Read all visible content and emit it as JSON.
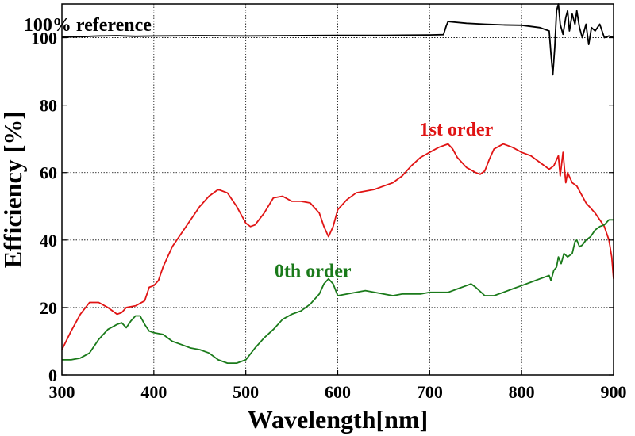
{
  "chart_data": {
    "type": "line",
    "title": "",
    "xlabel": "Wavelength[nm]",
    "ylabel": "Efficiency [%]",
    "xlim": [
      300,
      900
    ],
    "ylim": [
      0,
      110
    ],
    "xticks": [
      300,
      400,
      500,
      600,
      700,
      800,
      900
    ],
    "yticks": [
      0,
      20,
      40,
      60,
      80,
      100
    ],
    "grid": true,
    "series": [
      {
        "name": "100% reference",
        "color": "#000000",
        "label_anchor": [
          328,
          102
        ],
        "x": [
          300,
          320,
          340,
          360,
          380,
          400,
          450,
          500,
          550,
          600,
          650,
          700,
          715,
          718,
          720,
          740,
          760,
          780,
          800,
          820,
          830,
          832,
          834,
          836,
          838,
          840,
          842,
          845,
          848,
          850,
          852,
          855,
          858,
          860,
          863,
          866,
          870,
          873,
          876,
          880,
          885,
          890,
          895,
          900
        ],
        "y": [
          100.2,
          100.3,
          100.5,
          100.6,
          100.4,
          100.5,
          100.6,
          100.5,
          100.6,
          100.7,
          100.7,
          100.8,
          100.9,
          103.5,
          104.8,
          104.3,
          104.0,
          103.8,
          103.7,
          103.0,
          102.0,
          95,
          89,
          97,
          108,
          110,
          104,
          101,
          106,
          108,
          102,
          107,
          104,
          108,
          103,
          100,
          104,
          98,
          103,
          102,
          104,
          100,
          100.5,
          100
        ]
      },
      {
        "name": "1st order",
        "color": "#e01414",
        "label_anchor": [
          729,
          71
        ],
        "x": [
          300,
          310,
          320,
          330,
          340,
          350,
          360,
          365,
          370,
          380,
          390,
          395,
          400,
          405,
          410,
          420,
          430,
          440,
          450,
          460,
          470,
          480,
          490,
          500,
          505,
          510,
          520,
          530,
          540,
          550,
          560,
          570,
          580,
          585,
          590,
          595,
          600,
          610,
          620,
          630,
          640,
          650,
          660,
          670,
          680,
          690,
          700,
          710,
          720,
          725,
          730,
          740,
          750,
          755,
          760,
          765,
          770,
          780,
          790,
          800,
          810,
          820,
          830,
          835,
          840,
          842,
          845,
          848,
          850,
          855,
          860,
          870,
          880,
          890,
          895,
          898,
          900
        ],
        "y": [
          7.5,
          13,
          18,
          21.5,
          21.5,
          20,
          18,
          18.5,
          20,
          20.5,
          22,
          26,
          26.5,
          28,
          32,
          38,
          42,
          46,
          50,
          53,
          55,
          54,
          50,
          45,
          44,
          44.5,
          48,
          52.5,
          53,
          51.5,
          51.5,
          51,
          48,
          44,
          41,
          44,
          49,
          52,
          54,
          54.5,
          55,
          56,
          57,
          59,
          62,
          64.5,
          66,
          67.5,
          68.5,
          67,
          64.5,
          61.5,
          60,
          59.5,
          60.5,
          64,
          67,
          68.5,
          67.5,
          66,
          65,
          63,
          61,
          62,
          65,
          59,
          66,
          57,
          60,
          57,
          56,
          51,
          48,
          44,
          40,
          35,
          28.5
        ]
      },
      {
        "name": "0th order",
        "color": "#1a7a1a",
        "label_anchor": [
          573,
          29
        ],
        "x": [
          300,
          310,
          320,
          330,
          340,
          350,
          360,
          365,
          370,
          375,
          380,
          385,
          390,
          395,
          400,
          410,
          420,
          430,
          440,
          450,
          460,
          470,
          480,
          490,
          500,
          510,
          520,
          530,
          540,
          550,
          560,
          570,
          580,
          585,
          590,
          595,
          600,
          610,
          620,
          630,
          640,
          650,
          660,
          670,
          680,
          690,
          700,
          710,
          720,
          730,
          740,
          745,
          750,
          760,
          770,
          780,
          790,
          800,
          810,
          820,
          830,
          832,
          835,
          838,
          840,
          843,
          846,
          850,
          855,
          858,
          860,
          863,
          866,
          870,
          875,
          880,
          885,
          890,
          895,
          900
        ],
        "y": [
          4.5,
          4.5,
          5,
          6.5,
          10.5,
          13.5,
          15,
          15.5,
          14,
          16,
          17.5,
          17.5,
          15,
          13,
          12.5,
          12,
          10,
          9,
          8,
          7.5,
          6.5,
          4.5,
          3.5,
          3.5,
          4.5,
          8,
          11,
          13.5,
          16.5,
          18,
          19,
          21,
          24,
          27,
          28.5,
          27,
          23.5,
          24,
          24.5,
          25,
          24.5,
          24,
          23.5,
          24,
          24,
          24,
          24.5,
          24.5,
          24.5,
          25.5,
          26.5,
          27,
          26,
          23.5,
          23.5,
          24.5,
          25.5,
          26.5,
          27.5,
          28.5,
          29.5,
          28,
          31,
          32,
          35,
          33,
          36,
          35,
          36,
          39.5,
          40,
          38,
          38.5,
          40,
          41,
          43,
          44,
          44.5,
          46,
          46
        ]
      }
    ]
  }
}
